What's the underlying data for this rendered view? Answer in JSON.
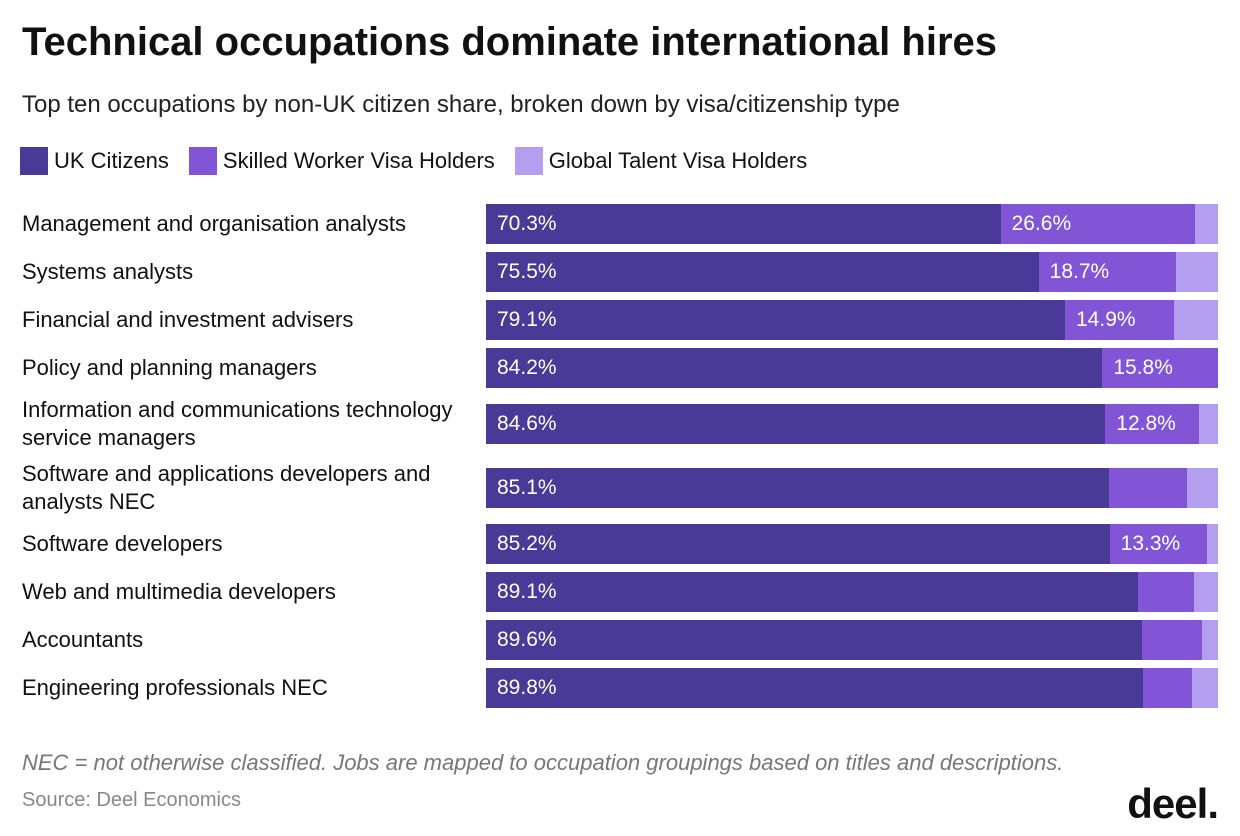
{
  "chart_data": {
    "type": "stacked-bar-horizontal",
    "title": "Technical occupations dominate international hires",
    "subtitle": "Top ten occupations by non-UK citizen share, broken down by visa/citizenship type",
    "categories": [
      "Management and organisation analysts",
      "Systems analysts",
      "Financial and investment advisers",
      "Policy and planning managers",
      "Information and communications technology service managers",
      "Software and applications developers and analysts NEC",
      "Software developers",
      "Web and multimedia developers",
      "Accountants",
      "Engineering professionals NEC"
    ],
    "series": [
      {
        "name": "UK Citizens",
        "color": "#483a96",
        "values": [
          70.3,
          75.5,
          79.1,
          84.2,
          84.6,
          85.1,
          85.2,
          89.1,
          89.6,
          89.8
        ],
        "value_labels": [
          "70.3%",
          "75.5%",
          "79.1%",
          "84.2%",
          "84.6%",
          "85.1%",
          "85.2%",
          "89.1%",
          "89.6%",
          "89.8%"
        ]
      },
      {
        "name": "Skilled Worker Visa Holders",
        "color": "#8155d6",
        "values": [
          26.6,
          18.7,
          14.9,
          15.8,
          12.8,
          10.7,
          13.3,
          7.6,
          8.2,
          6.6
        ],
        "value_labels": [
          "26.6%",
          "18.7%",
          "14.9%",
          "15.8%",
          "12.8%",
          null,
          "13.3%",
          null,
          null,
          null
        ]
      },
      {
        "name": "Global Talent Visa Holders",
        "color": "#b49ef0",
        "values": [
          3.1,
          5.8,
          6.0,
          0,
          2.6,
          4.2,
          1.5,
          3.3,
          2.2,
          3.6
        ],
        "value_labels": [
          null,
          null,
          null,
          null,
          null,
          null,
          null,
          null,
          null,
          null
        ]
      }
    ],
    "xlim": [
      0,
      100
    ],
    "note": "NEC = not otherwise classified. Jobs are mapped to occupation groupings based on titles and descriptions.",
    "source": "Source: Deel Economics",
    "logo": "deel."
  }
}
